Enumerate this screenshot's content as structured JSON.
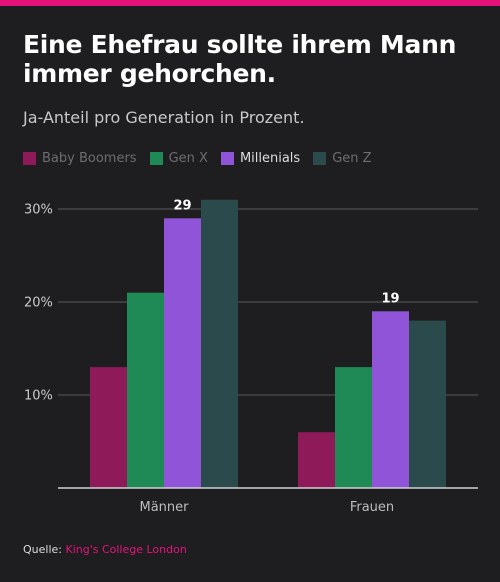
{
  "header": {
    "title": "Eine Ehefrau sollte ihrem Mann immer gehorchen.",
    "subtitle": "Ja-Anteil pro Generation in Prozent."
  },
  "colors": {
    "background": "#1e1e20",
    "accent": "#e6127b",
    "grid": "#5a5a5e",
    "axis": "#d0d0d4"
  },
  "chart_data": {
    "type": "bar",
    "categories": [
      "Männer",
      "Frauen"
    ],
    "series": [
      {
        "name": "Baby Boomers",
        "values": [
          13,
          6
        ],
        "color": "#8e1a5a",
        "highlighted": false
      },
      {
        "name": "Gen X",
        "values": [
          21,
          13
        ],
        "color": "#1f8a55",
        "highlighted": false
      },
      {
        "name": "Millenials",
        "values": [
          29,
          19
        ],
        "color": "#8f54d8",
        "highlighted": true,
        "data_labels": [
          "29",
          "19"
        ]
      },
      {
        "name": "Gen Z",
        "values": [
          31,
          18
        ],
        "color": "#2b4a4b",
        "highlighted": false
      }
    ],
    "ylim": [
      0,
      30
    ],
    "yticks": [
      10,
      20,
      30
    ],
    "ytick_labels": [
      "10%",
      "20%",
      "30%"
    ],
    "grid": true,
    "legend_position": "top-left"
  },
  "footer": {
    "source_label": "Quelle:",
    "source_name": "King's College London"
  }
}
